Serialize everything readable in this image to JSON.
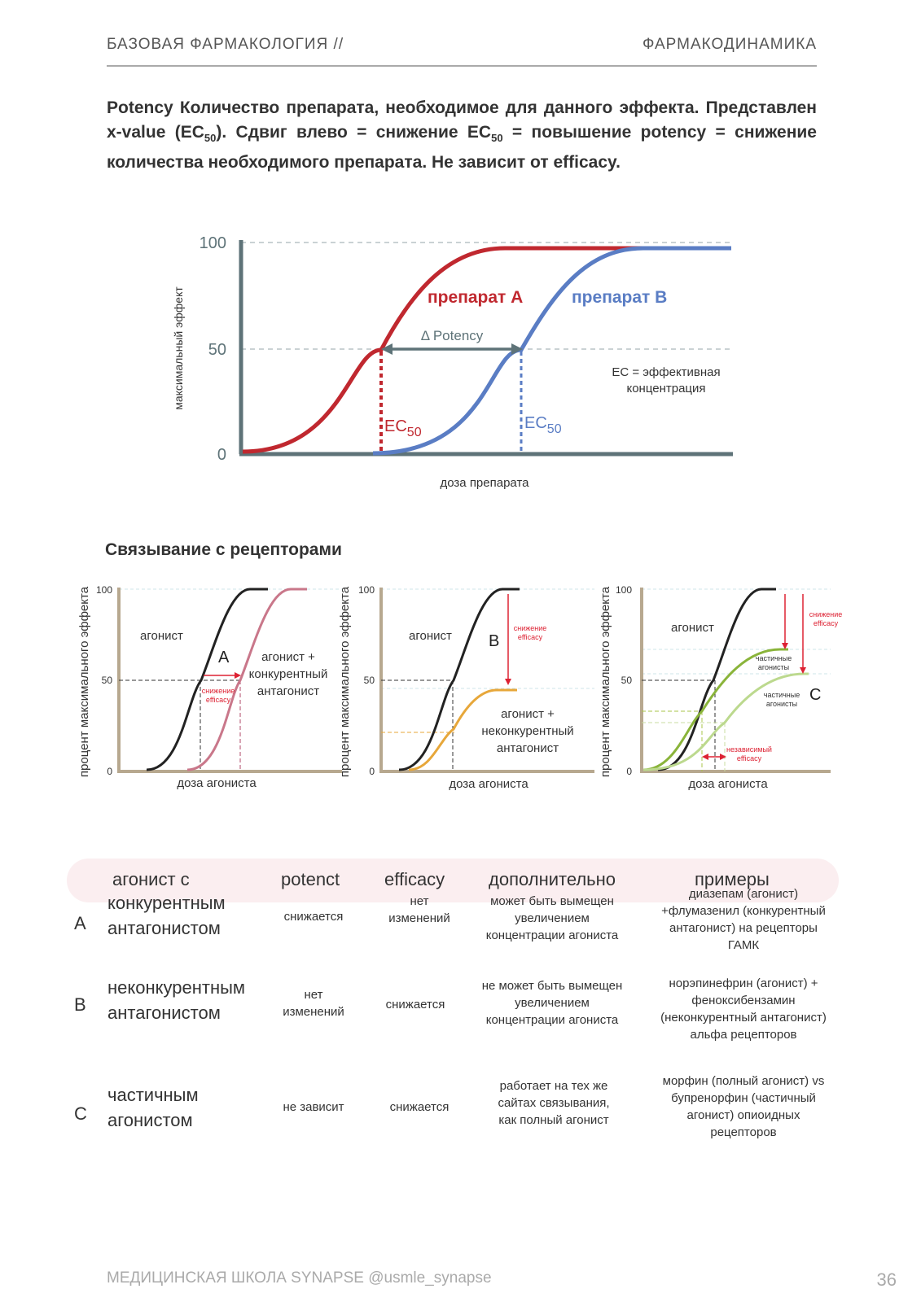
{
  "header": {
    "left": "БАЗОВАЯ ФАРМАКОЛОГИЯ  //",
    "right": "ФАРМАКОДИНАМИКА"
  },
  "intro": {
    "p1": "Potency Количество препарата, необходимое для данного эффекта. Представлен x-value (EC",
    "p1_sub": "50",
    "p2": "). Сдвиг влево = снижение EC",
    "p2_sub": "50",
    "p3": " = повышение potency = снижение количества необходимого препарата. Не зависит от efficacy."
  },
  "chart_main": {
    "y_ticks": [
      "100",
      "50",
      "0"
    ],
    "ylabel": "максимальный эффект",
    "xlabel": "доза препарата",
    "drug_a": "препарат А",
    "drug_b": "препарат В",
    "delta": "Δ Potency",
    "ec_a": "EC",
    "ec_b": "EC",
    "ec_sub": "50",
    "note1": "EC = эффективная",
    "note2": "концентрация",
    "colors": {
      "a": "#c0282f",
      "b": "#5a7dc4",
      "axis": "#5e7378"
    }
  },
  "section_title": "Связывание с рецепторами",
  "small_charts": {
    "ylabel": "процент максимального эффекта",
    "xlabel": "доза агониста",
    "ticks": [
      "100",
      "50",
      "0"
    ],
    "a": {
      "agonist": "агонист",
      "letter": "A",
      "lab1": "агонист +",
      "lab2": "конкурентный",
      "lab3": "антагонист",
      "note1": "снижение",
      "note2": "efficacy"
    },
    "b": {
      "agonist": "агонист",
      "letter": "B",
      "lab1": "агонист +",
      "lab2": "неконкурентный",
      "lab3": "антагонист",
      "note1": "снижение",
      "note2": "efficacy"
    },
    "c": {
      "agonist": "агонист",
      "letter": "C",
      "partial1a": "частичные",
      "partial1b": "агонисты",
      "partial2a": "частичные",
      "partial2b": "агонисты",
      "note1": "снижение",
      "note2": "efficacy",
      "ind1": "независимый",
      "ind2": "efficacy"
    }
  },
  "table": {
    "headers": [
      "агонист с",
      "potenct",
      "efficacy",
      "дополнительно",
      "примеры"
    ],
    "rows": [
      {
        "letter": "A",
        "name1": "конкурентным",
        "name2": "антагонистом",
        "potency": "снижается",
        "efficacy1": "нет",
        "efficacy2": "изменений",
        "extra1": "может быть вымещен",
        "extra2": "увеличением",
        "extra3": "концентрации агониста",
        "ex1": "диазепам (агонист)",
        "ex2": "+флумазенил (конкурентный",
        "ex3": "антагонист) на рецепторы",
        "ex4": "ГАМК"
      },
      {
        "letter": "B",
        "name1": "неконкурентным",
        "name2": "антагонистом",
        "potency1": "нет",
        "potency2": "изменений",
        "efficacy": "снижается",
        "extra1": "не может быть вымещен",
        "extra2": "увеличением",
        "extra3": "концентрации агониста",
        "ex1": "норэпинефрин (агонист) +",
        "ex2": "феноксибензамин",
        "ex3": "(неконкурентный антагонист)",
        "ex4": "альфа рецепторов"
      },
      {
        "letter": "C",
        "name1": "частичным",
        "name2": "агонистом",
        "potency": "не зависит",
        "efficacy": "снижается",
        "extra1": "работает на тех же",
        "extra2": "сайтах связывания,",
        "extra3": "как полный агонист",
        "ex1": "морфин (полный агонист) vs",
        "ex2": "бупренорфин (частичный",
        "ex3": "агонист) опиоидных",
        "ex4": "рецепторов"
      }
    ]
  },
  "footer": {
    "left": "МЕДИЦИНСКАЯ ШКОЛА SYNAPSE @usmle_synapse",
    "page": "36"
  }
}
